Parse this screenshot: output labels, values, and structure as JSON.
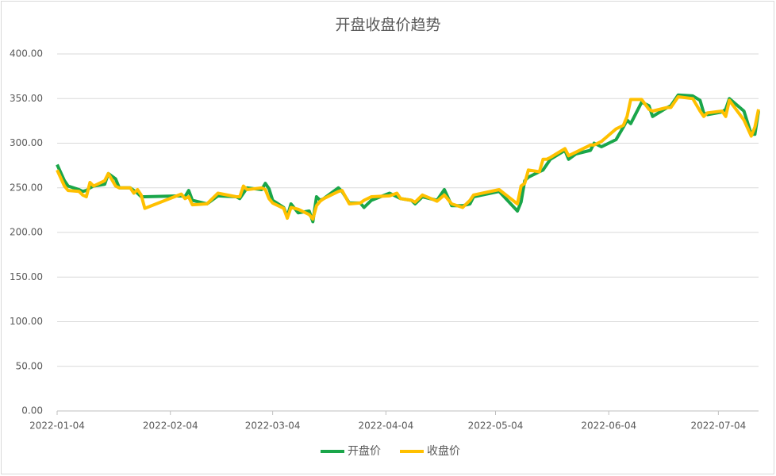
{
  "chart_data": {
    "type": "line",
    "title": "开盘收盘价趋势",
    "x": [
      "2022-01-04",
      "2022-01-06",
      "2022-01-07",
      "2022-01-10",
      "2022-01-11",
      "2022-01-12",
      "2022-01-13",
      "2022-01-14",
      "2022-01-17",
      "2022-01-18",
      "2022-01-20",
      "2022-01-21",
      "2022-01-24",
      "2022-01-25",
      "2022-01-26",
      "2022-01-27",
      "2022-01-28",
      "2022-02-07",
      "2022-02-08",
      "2022-02-09",
      "2022-02-10",
      "2022-02-14",
      "2022-02-17",
      "2022-02-22",
      "2022-02-23",
      "2022-02-24",
      "2022-02-25",
      "2022-03-01",
      "2022-03-02",
      "2022-03-03",
      "2022-03-04",
      "2022-03-07",
      "2022-03-08",
      "2022-03-09",
      "2022-03-11",
      "2022-03-14",
      "2022-03-15",
      "2022-03-16",
      "2022-03-17",
      "2022-03-18",
      "2022-03-22",
      "2022-03-23",
      "2022-03-25",
      "2022-03-28",
      "2022-03-29",
      "2022-03-31",
      "2022-04-05",
      "2022-04-07",
      "2022-04-08",
      "2022-04-11",
      "2022-04-12",
      "2022-04-14",
      "2022-04-18",
      "2022-04-20",
      "2022-04-22",
      "2022-04-25",
      "2022-04-27",
      "2022-04-28",
      "2022-05-05",
      "2022-05-10",
      "2022-05-11",
      "2022-05-12",
      "2022-05-13",
      "2022-05-16",
      "2022-05-17",
      "2022-05-18",
      "2022-05-19",
      "2022-05-23",
      "2022-05-24",
      "2022-05-26",
      "2022-05-30",
      "2022-05-31",
      "2022-06-02",
      "2022-06-06",
      "2022-06-08",
      "2022-06-09",
      "2022-06-10",
      "2022-06-13",
      "2022-06-15",
      "2022-06-16",
      "2022-06-20",
      "2022-06-21",
      "2022-06-23",
      "2022-06-27",
      "2022-06-29",
      "2022-06-30",
      "2022-07-01",
      "2022-07-05",
      "2022-07-06",
      "2022-07-07",
      "2022-07-11",
      "2022-07-13",
      "2022-07-14",
      "2022-07-15"
    ],
    "series": [
      {
        "name": "开盘价",
        "color": "#1aa64a",
        "values": [
          276,
          258,
          252,
          248,
          246,
          247,
          250,
          252,
          254,
          266,
          260,
          250,
          250,
          247,
          244,
          240,
          240,
          241,
          240,
          247,
          236,
          232,
          241,
          240,
          238,
          244,
          250,
          248,
          255,
          249,
          236,
          228,
          218,
          232,
          222,
          224,
          212,
          240,
          236,
          238,
          250,
          246,
          233,
          233,
          228,
          236,
          244,
          240,
          238,
          236,
          232,
          240,
          236,
          248,
          230,
          230,
          232,
          240,
          246,
          224,
          234,
          258,
          262,
          268,
          270,
          276,
          282,
          292,
          282,
          288,
          292,
          300,
          296,
          304,
          318,
          326,
          322,
          346,
          342,
          330,
          340,
          342,
          354,
          353,
          348,
          334,
          332,
          335,
          338,
          350,
          336,
          310,
          310,
          336
        ]
      },
      {
        "name": "收盘价",
        "color": "#ffc000",
        "values": [
          270,
          252,
          247,
          246,
          242,
          240,
          256,
          252,
          258,
          266,
          252,
          250,
          250,
          244,
          248,
          242,
          227,
          243,
          238,
          240,
          231,
          232,
          244,
          240,
          240,
          252,
          248,
          250,
          248,
          238,
          233,
          227,
          216,
          228,
          226,
          220,
          215,
          230,
          235,
          238,
          246,
          247,
          232,
          233,
          236,
          240,
          241,
          244,
          238,
          236,
          234,
          242,
          235,
          242,
          232,
          228,
          236,
          242,
          248,
          232,
          252,
          255,
          270,
          268,
          282,
          282,
          284,
          294,
          286,
          290,
          298,
          298,
          302,
          316,
          320,
          330,
          349,
          349,
          338,
          336,
          340,
          340,
          352,
          350,
          336,
          330,
          334,
          336,
          330,
          348,
          326,
          308,
          318,
          338
        ]
      }
    ],
    "xlim": [
      "2022-01-04",
      "2022-07-15"
    ],
    "xticks": [
      "2022-01-04",
      "2022-02-04",
      "2022-03-04",
      "2022-04-04",
      "2022-05-04",
      "2022-06-04",
      "2022-07-04"
    ],
    "ylim": [
      0,
      400
    ],
    "yticks": [
      {
        "value": 0,
        "label": "0.00"
      },
      {
        "value": 50,
        "label": "50.00"
      },
      {
        "value": 100,
        "label": "100.00"
      },
      {
        "value": 150,
        "label": "150.00"
      },
      {
        "value": 200,
        "label": "200.00"
      },
      {
        "value": 250,
        "label": "250.00"
      },
      {
        "value": 300,
        "label": "300.00"
      },
      {
        "value": 350,
        "label": "350.00"
      },
      {
        "value": 400,
        "label": "400.00"
      }
    ],
    "grid": true,
    "legend": "bottom"
  }
}
